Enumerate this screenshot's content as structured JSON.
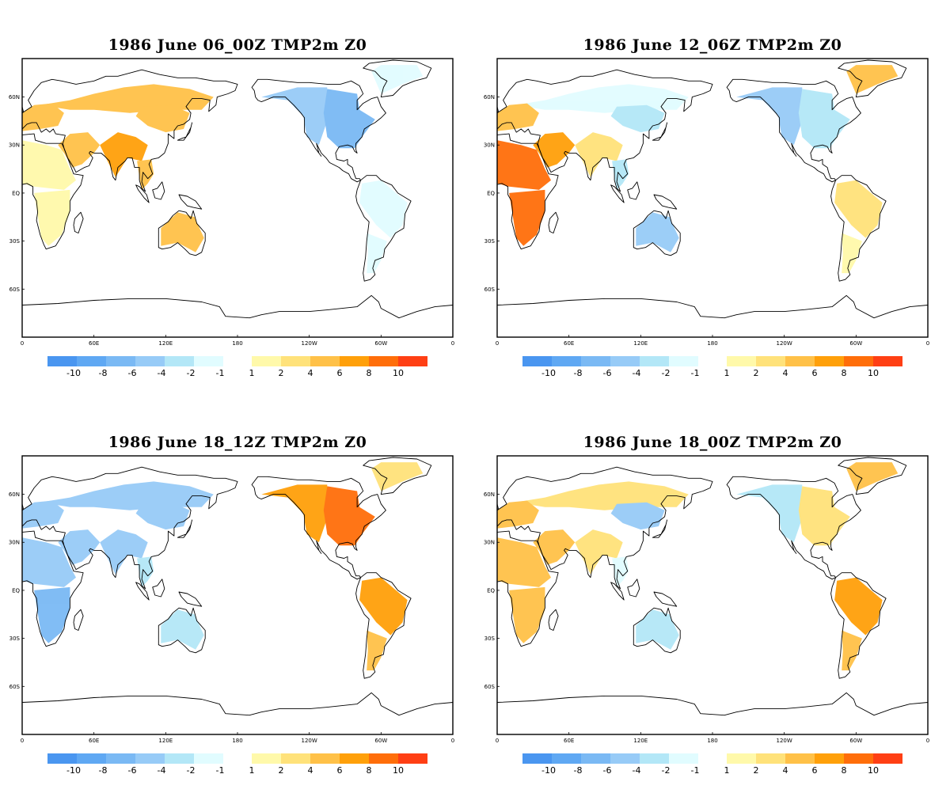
{
  "panels": [
    {
      "title": "1986 June 06_00Z TMP2m Z0",
      "anomaly": {
        "eurasia_north": 4,
        "eurasia_east": 5,
        "europe_west": 4,
        "middle_east": 5,
        "south_asia": 7,
        "southeast_asia": 4,
        "africa_north": 1,
        "africa_south": 1,
        "australia": 5,
        "north_america_west": -3,
        "north_america_east": -5,
        "greenland": -1,
        "south_america": -1,
        "south_america_south": -1
      }
    },
    {
      "title": "1986 June 12_06Z TMP2m Z0",
      "anomaly": {
        "eurasia_north": -1,
        "eurasia_east": -2,
        "europe_west": 4,
        "middle_east": 6,
        "south_asia": 2,
        "southeast_asia": -2,
        "africa_north": 8,
        "africa_south": 9,
        "australia": -3,
        "north_america_west": -3,
        "north_america_east": -2,
        "greenland": 4,
        "south_america": 2,
        "south_america_south": 1
      }
    },
    {
      "title": "1986 June 18_12Z TMP2m Z0",
      "anomaly": {
        "eurasia_north": -4,
        "eurasia_east": -3,
        "europe_west": -3,
        "middle_east": -4,
        "south_asia": -3,
        "southeast_asia": -2,
        "africa_north": -3,
        "africa_south": -6,
        "australia": -2,
        "north_america_west": 7,
        "north_america_east": 8,
        "greenland": 2,
        "south_america": 7,
        "south_america_south": 4
      }
    },
    {
      "title": "1986 June 18_00Z TMP2m Z0",
      "anomaly": {
        "eurasia_north": 3,
        "eurasia_east": -3,
        "europe_west": 5,
        "middle_east": 5,
        "south_asia": 3,
        "southeast_asia": -1,
        "africa_north": 4,
        "africa_south": 4,
        "australia": -2,
        "north_america_west": -2,
        "north_america_east": 3,
        "greenland": 4,
        "south_america": 7,
        "south_america_south": 4
      }
    }
  ],
  "lat_labels": [
    "60N",
    "30N",
    "EQ",
    "30S",
    "60S"
  ],
  "lon_labels": [
    "0",
    "60E",
    "120E",
    "180",
    "120W",
    "60W",
    "0"
  ],
  "colorbar": {
    "colors": [
      "#4a96f0",
      "#5fa8f3",
      "#7ab9f4",
      "#97cbf7",
      "#b3e7f7",
      "#e1fcff",
      "#ffffff",
      "#fff9aa",
      "#ffe27a",
      "#ffc148",
      "#ffa00a",
      "#ff6e0a",
      "#ff3f14"
    ],
    "labels": [
      "-10",
      "-8",
      "-6",
      "-4",
      "-2",
      "-1",
      "1",
      "2",
      "4",
      "6",
      "8",
      "10"
    ]
  }
}
